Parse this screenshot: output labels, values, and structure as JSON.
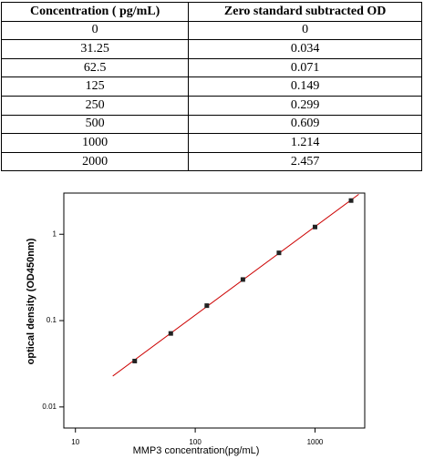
{
  "table": {
    "header": [
      "Concentration ( pg/mL)",
      "Zero standard subtracted OD"
    ],
    "rows": [
      [
        "0",
        "0"
      ],
      [
        "31.25",
        "0.034"
      ],
      [
        "62.5",
        "0.071"
      ],
      [
        "125",
        "0.149"
      ],
      [
        "250",
        "0.299"
      ],
      [
        "500",
        "0.609"
      ],
      [
        "1000",
        "1.214"
      ],
      [
        "2000",
        "2.457"
      ]
    ]
  },
  "chart_data": {
    "type": "scatter",
    "x_label": "MMP3  concentration(pg/mL)",
    "y_label": "optical density (OD450nm)",
    "x": [
      31.25,
      62.5,
      125,
      250,
      500,
      1000,
      2000
    ],
    "values": [
      0.034,
      0.071,
      0.149,
      0.299,
      0.609,
      1.214,
      2.457
    ],
    "color": "#222222",
    "log_x": true,
    "log_y": true,
    "xlim": [
      8,
      2600
    ],
    "ylim": [
      0.0057,
      3
    ],
    "xticks": [
      10,
      100,
      1000
    ],
    "yticks": [
      0.01,
      0.1,
      1
    ],
    "fit": {
      "x": [
        20.5,
        2317
      ],
      "y": [
        0.0228,
        2.9
      ],
      "color": "#cc0000"
    }
  }
}
